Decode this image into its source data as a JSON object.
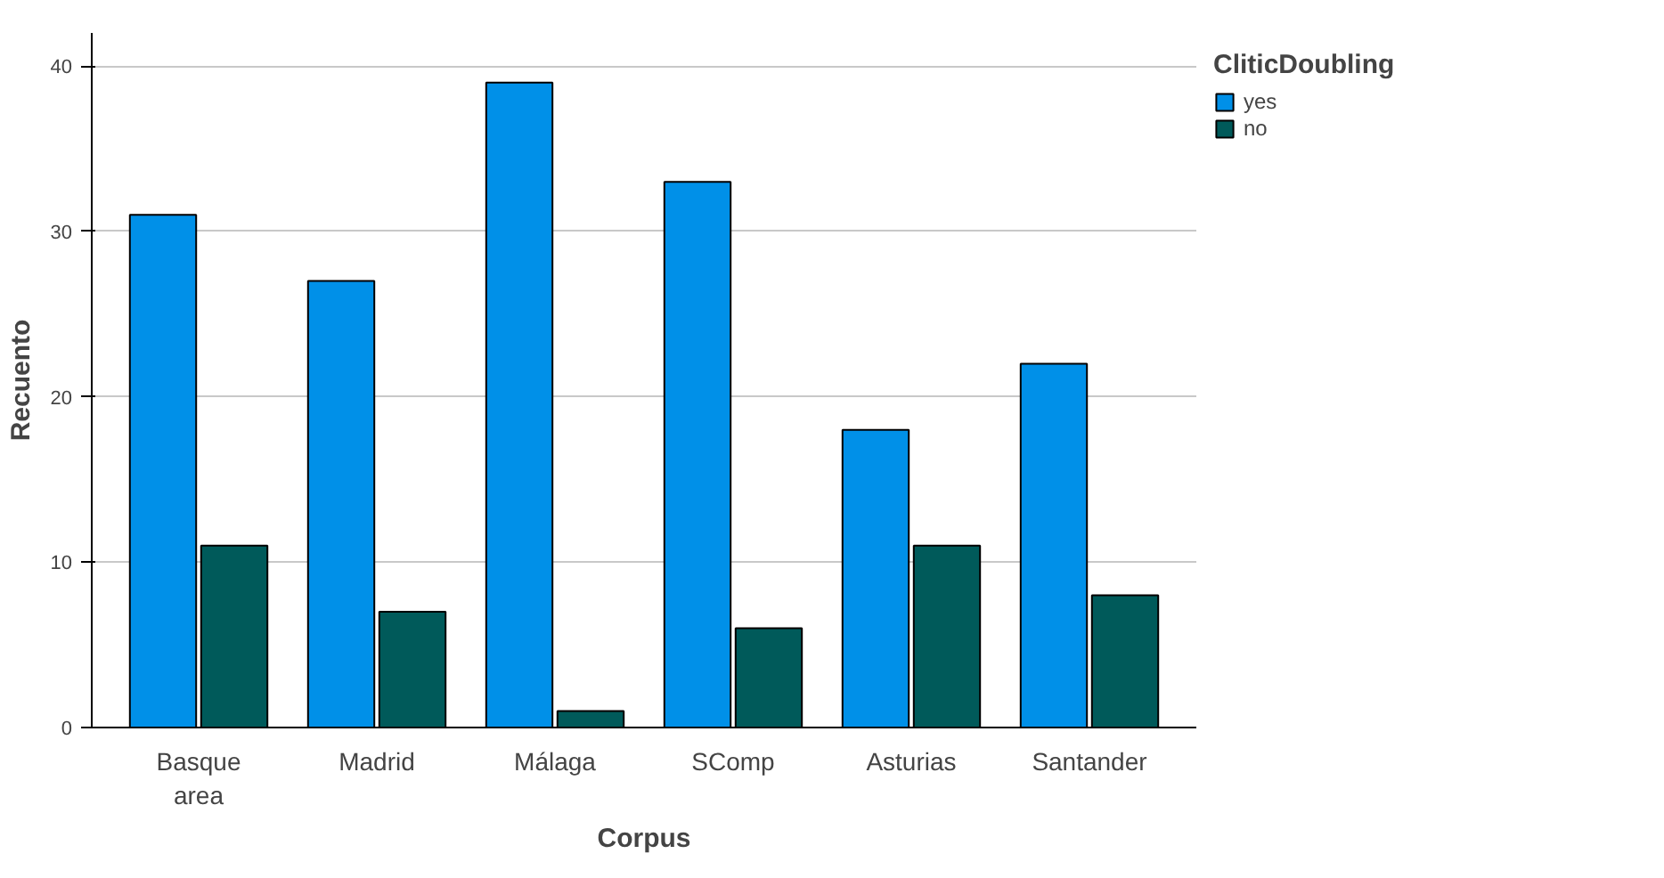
{
  "chart_data": {
    "type": "bar",
    "xlabel": "Corpus",
    "ylabel": "Recuento",
    "legend_title": "CliticDoubling",
    "categories": [
      "Basque area",
      "Madrid",
      "Málaga",
      "SComp",
      "Asturias",
      "Santander"
    ],
    "series": [
      {
        "name": "yes",
        "color": "#0090e8",
        "values": [
          31,
          27,
          39,
          33,
          18,
          22
        ]
      },
      {
        "name": "no",
        "color": "#005a5a",
        "values": [
          11,
          7,
          1,
          6,
          11,
          8
        ]
      }
    ],
    "ylim": [
      0,
      42
    ],
    "yticks": [
      0,
      10,
      20,
      30,
      40
    ],
    "grid": "y",
    "legend": "top right"
  }
}
